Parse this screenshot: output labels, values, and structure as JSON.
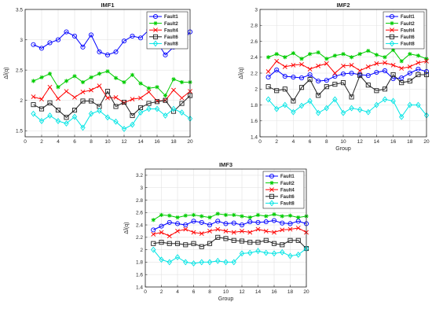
{
  "chart_data": [
    {
      "type": "line",
      "title": "IMF1",
      "xlabel": "",
      "ylabel": "ΔĪ(q)",
      "xlim": [
        0,
        20
      ],
      "ylim": [
        1.4,
        3.5
      ],
      "xticks": [
        0,
        2,
        4,
        6,
        8,
        10,
        12,
        14,
        16,
        18,
        20
      ],
      "yticks": [
        1.5,
        2,
        2.5,
        3,
        3.5
      ],
      "grid": true,
      "legend_position": "top-right",
      "x": [
        1,
        2,
        3,
        4,
        5,
        6,
        7,
        8,
        9,
        10,
        11,
        12,
        13,
        14,
        15,
        16,
        17,
        18,
        19,
        20
      ],
      "series": [
        {
          "name": "Fault1",
          "color": "#0000ff",
          "marker": "circle",
          "values": [
            2.92,
            2.86,
            2.95,
            3.0,
            3.13,
            3.06,
            2.88,
            3.08,
            2.8,
            2.75,
            2.8,
            2.98,
            3.06,
            3.03,
            3.16,
            2.96,
            2.75,
            2.88,
            2.95,
            3.13
          ]
        },
        {
          "name": "Fault2",
          "color": "#00cc00",
          "marker": "star",
          "values": [
            2.32,
            2.38,
            2.44,
            2.22,
            2.32,
            2.4,
            2.3,
            2.38,
            2.44,
            2.48,
            2.37,
            2.3,
            2.42,
            2.28,
            2.2,
            2.22,
            2.08,
            2.35,
            2.3,
            2.3
          ]
        },
        {
          "name": "Fault4",
          "color": "#ff0000",
          "marker": "x",
          "values": [
            2.06,
            2.02,
            2.22,
            2.03,
            2.15,
            2.05,
            2.14,
            2.17,
            2.24,
            2.04,
            2.05,
            1.96,
            2.02,
            2.04,
            2.14,
            1.99,
            2.0,
            2.17,
            2.04,
            2.15
          ]
        },
        {
          "name": "Fault6",
          "color": "#222222",
          "marker": "square",
          "values": [
            1.93,
            1.86,
            1.96,
            1.84,
            1.72,
            1.84,
            1.99,
            1.99,
            1.9,
            2.15,
            1.9,
            1.97,
            1.75,
            1.88,
            1.95,
            1.98,
            2.0,
            1.82,
            1.95,
            2.08
          ]
        },
        {
          "name": "Fault8",
          "color": "#00e5e5",
          "marker": "diamond",
          "values": [
            1.78,
            1.66,
            1.75,
            1.66,
            1.62,
            1.73,
            1.55,
            1.78,
            1.83,
            1.72,
            1.65,
            1.53,
            1.6,
            1.8,
            1.86,
            1.86,
            1.75,
            1.86,
            1.8,
            1.7
          ]
        }
      ]
    },
    {
      "type": "line",
      "title": "IMF2",
      "xlabel": "Group",
      "ylabel": "ΔĪ(q)",
      "xlim": [
        0,
        20
      ],
      "ylim": [
        1.4,
        3.0
      ],
      "xticks": [
        0,
        2,
        4,
        6,
        8,
        10,
        12,
        14,
        16,
        18,
        20
      ],
      "yticks": [
        1.4,
        1.6,
        1.8,
        2,
        2.2,
        2.4,
        2.6,
        2.8,
        3
      ],
      "grid": true,
      "legend_position": "top-right",
      "x": [
        1,
        2,
        3,
        4,
        5,
        6,
        7,
        8,
        9,
        10,
        11,
        12,
        13,
        14,
        15,
        16,
        17,
        18,
        19,
        20
      ],
      "series": [
        {
          "name": "Fault1",
          "color": "#0000ff",
          "marker": "circle",
          "values": [
            2.15,
            2.24,
            2.16,
            2.15,
            2.14,
            2.18,
            2.1,
            2.11,
            2.16,
            2.19,
            2.2,
            2.18,
            2.17,
            2.21,
            2.23,
            2.13,
            2.14,
            2.2,
            2.25,
            2.22
          ]
        },
        {
          "name": "Fault2",
          "color": "#00cc00",
          "marker": "star",
          "values": [
            2.4,
            2.44,
            2.4,
            2.45,
            2.38,
            2.44,
            2.46,
            2.38,
            2.42,
            2.44,
            2.4,
            2.44,
            2.48,
            2.43,
            2.4,
            2.49,
            2.35,
            2.44,
            2.42,
            2.38
          ]
        },
        {
          "name": "Fault4",
          "color": "#ff0000",
          "marker": "x",
          "values": [
            2.22,
            2.35,
            2.28,
            2.3,
            2.31,
            2.25,
            2.29,
            2.32,
            2.2,
            2.29,
            2.3,
            2.23,
            2.28,
            2.32,
            2.33,
            2.3,
            2.26,
            2.28,
            2.33,
            2.35
          ]
        },
        {
          "name": "Fault6",
          "color": "#222222",
          "marker": "square",
          "values": [
            2.03,
            1.98,
            2.0,
            1.85,
            2.02,
            2.12,
            1.92,
            2.03,
            2.06,
            2.08,
            1.9,
            2.17,
            2.05,
            1.98,
            2.0,
            2.18,
            2.08,
            2.1,
            2.18,
            2.18
          ]
        },
        {
          "name": "Fault8",
          "color": "#00e5e5",
          "marker": "diamond",
          "values": [
            1.87,
            1.75,
            1.8,
            1.71,
            1.79,
            1.85,
            1.7,
            1.76,
            1.87,
            1.7,
            1.76,
            1.74,
            1.71,
            1.8,
            1.87,
            1.85,
            1.65,
            1.8,
            1.8,
            1.67
          ]
        }
      ]
    },
    {
      "type": "line",
      "title": "IMF3",
      "xlabel": "Group",
      "ylabel": "ΔĪ(q)",
      "xlim": [
        0,
        20
      ],
      "ylim": [
        1.4,
        3.3
      ],
      "xticks": [
        0,
        2,
        4,
        6,
        8,
        10,
        12,
        14,
        16,
        18,
        20
      ],
      "yticks": [
        1.4,
        1.6,
        1.8,
        2,
        2.2,
        2.4,
        2.6,
        2.8,
        3,
        3.2
      ],
      "grid": true,
      "legend_position": "top-right",
      "x": [
        1,
        2,
        3,
        4,
        5,
        6,
        7,
        8,
        9,
        10,
        11,
        12,
        13,
        14,
        15,
        16,
        17,
        18,
        19,
        20
      ],
      "series": [
        {
          "name": "Fault1",
          "color": "#0000ff",
          "marker": "circle",
          "values": [
            2.32,
            2.38,
            2.44,
            2.42,
            2.4,
            2.46,
            2.44,
            2.4,
            2.46,
            2.42,
            2.43,
            2.4,
            2.45,
            2.44,
            2.45,
            2.47,
            2.43,
            2.42,
            2.46,
            2.42
          ]
        },
        {
          "name": "Fault2",
          "color": "#00cc00",
          "marker": "star",
          "values": [
            2.48,
            2.56,
            2.55,
            2.52,
            2.55,
            2.56,
            2.54,
            2.52,
            2.58,
            2.56,
            2.56,
            2.54,
            2.52,
            2.56,
            2.54,
            2.57,
            2.54,
            2.55,
            2.52,
            2.54
          ]
        },
        {
          "name": "Fault4",
          "color": "#ff0000",
          "marker": "x",
          "values": [
            2.25,
            2.28,
            2.22,
            2.3,
            2.33,
            2.28,
            2.26,
            2.3,
            2.33,
            2.3,
            2.28,
            2.3,
            2.28,
            2.33,
            2.3,
            2.28,
            2.32,
            2.33,
            2.35,
            2.28
          ]
        },
        {
          "name": "Fault6",
          "color": "#222222",
          "marker": "square",
          "values": [
            2.1,
            2.12,
            2.1,
            2.1,
            2.08,
            2.1,
            2.05,
            2.1,
            2.2,
            2.18,
            2.15,
            2.14,
            2.12,
            2.12,
            2.15,
            2.1,
            2.08,
            2.15,
            2.15,
            2.02
          ]
        },
        {
          "name": "Fault8",
          "color": "#00e5e5",
          "marker": "diamond",
          "values": [
            2.0,
            1.84,
            1.8,
            1.88,
            1.8,
            1.78,
            1.8,
            1.8,
            1.82,
            1.8,
            1.8,
            1.94,
            1.95,
            1.98,
            1.95,
            1.94,
            1.96,
            1.9,
            1.92,
            2.02
          ]
        }
      ]
    }
  ]
}
